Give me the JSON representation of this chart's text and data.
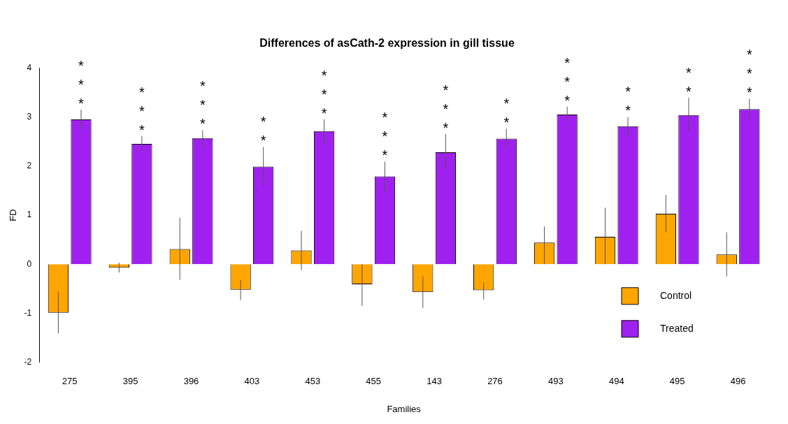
{
  "chart_data": {
    "type": "bar",
    "title": "Differences of asCath-2 expression in gill tissue",
    "xlabel": "Families",
    "ylabel": "FD",
    "categories": [
      "275",
      "395",
      "396",
      "403",
      "453",
      "455",
      "143",
      "276",
      "493",
      "494",
      "495",
      "496"
    ],
    "series": [
      {
        "name": "Control",
        "color": "#ffa500",
        "values": [
          -0.99,
          -0.07,
          0.31,
          -0.52,
          0.28,
          -0.41,
          -0.57,
          -0.53,
          0.44,
          0.56,
          1.03,
          0.2
        ],
        "errors": [
          [
            -1.41,
            -0.56
          ],
          [
            -0.17,
            0.03
          ],
          [
            -0.32,
            0.95
          ],
          [
            -0.73,
            -0.32
          ],
          [
            -0.12,
            0.68
          ],
          [
            -0.85,
            0.0
          ],
          [
            -0.89,
            -0.25
          ],
          [
            -0.72,
            -0.37
          ],
          [
            0.0,
            0.77
          ],
          [
            0.0,
            1.15
          ],
          [
            0.65,
            1.41
          ],
          [
            -0.25,
            0.65
          ]
        ]
      },
      {
        "name": "Treated",
        "color": "#a020f0",
        "values": [
          2.95,
          2.45,
          2.57,
          1.99,
          2.71,
          1.79,
          2.28,
          2.56,
          3.05,
          2.81,
          3.04,
          3.16
        ],
        "errors": [
          [
            2.75,
            3.15
          ],
          [
            2.31,
            2.61
          ],
          [
            2.39,
            2.73
          ],
          [
            1.59,
            2.39
          ],
          [
            2.44,
            2.95
          ],
          [
            1.48,
            2.09
          ],
          [
            1.91,
            2.65
          ],
          [
            2.37,
            2.76
          ],
          [
            2.91,
            3.21
          ],
          [
            2.61,
            3.0
          ],
          [
            2.71,
            3.39
          ],
          [
            2.95,
            3.37
          ]
        ]
      }
    ],
    "annotations": [
      {
        "text": "***",
        "x": "275",
        "y": 2.95
      },
      {
        "text": "***",
        "x": "395",
        "y": 2.45
      },
      {
        "text": "***",
        "x": "396",
        "y": 2.57
      },
      {
        "text": "**",
        "x": "403",
        "y": 1.99
      },
      {
        "text": "***",
        "x": "453",
        "y": 2.71
      },
      {
        "text": "***",
        "x": "455",
        "y": 1.79
      },
      {
        "text": "***",
        "x": "143",
        "y": 2.28
      },
      {
        "text": "**",
        "x": "276",
        "y": 2.56
      },
      {
        "text": "***",
        "x": "493",
        "y": 3.05
      },
      {
        "text": "**",
        "x": "494",
        "y": 2.81
      },
      {
        "text": "**",
        "x": "495",
        "y": 3.04
      },
      {
        "text": "***",
        "x": "496",
        "y": 3.16
      }
    ],
    "ylim": [
      -2,
      4
    ],
    "yticks": [
      -2,
      -1,
      0,
      1,
      2,
      3,
      4
    ],
    "grid": false,
    "legend": "bottom right"
  }
}
